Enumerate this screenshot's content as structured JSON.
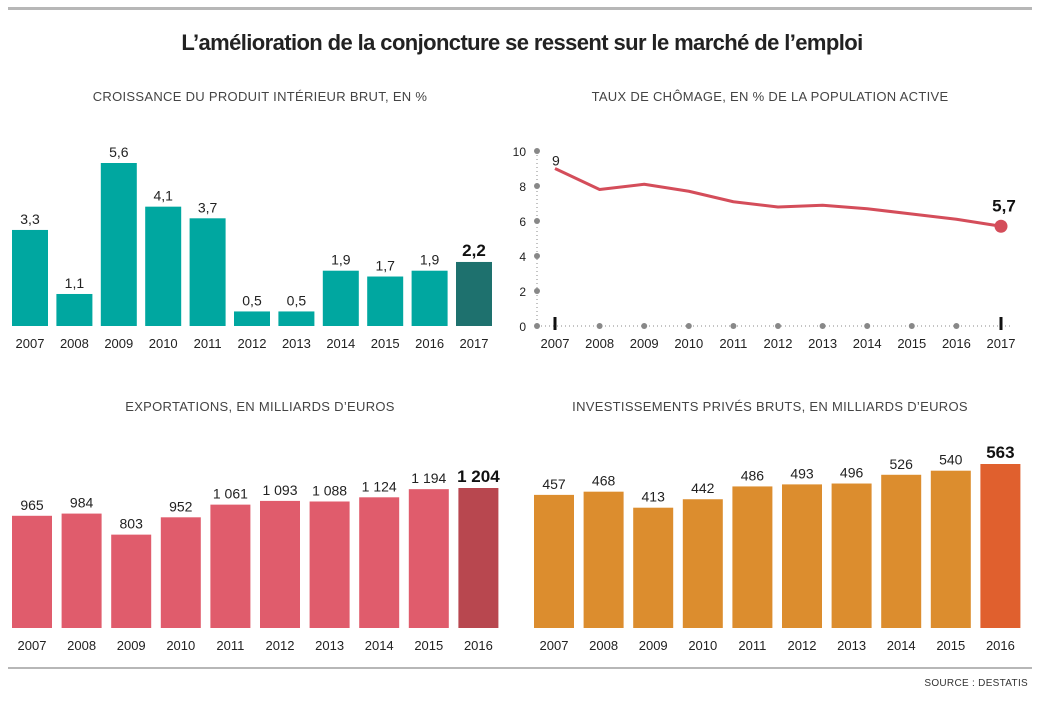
{
  "title": "L’amélioration de la conjoncture se ressent sur le marché de l’emploi",
  "source": "SOURCE : DESTATIS",
  "colors": {
    "gdp": "#00a7a0",
    "gdp_highlight": "#1e716e",
    "unemployment_line": "#d44d5a",
    "exports": "#e05c6c",
    "exports_highlight": "#b8474f",
    "investment": "#dc8d2e",
    "investment_highlight": "#e0602e",
    "axis": "#888888"
  },
  "chart_data": [
    {
      "id": "gdp",
      "type": "bar",
      "title": "CROISSANCE DU PRODUIT INTÉRIEUR BRUT, EN %",
      "categories": [
        "2007",
        "2008",
        "2009",
        "2010",
        "2011",
        "2012",
        "2013",
        "2014",
        "2015",
        "2016",
        "2017"
      ],
      "values": [
        3.3,
        1.1,
        5.6,
        4.1,
        3.7,
        0.5,
        0.5,
        1.9,
        1.7,
        1.9,
        2.2
      ],
      "labels": [
        "3,3",
        "1,1",
        "5,6",
        "4,1",
        "3,7",
        "0,5",
        "0,5",
        "1,9",
        "1,7",
        "1,9",
        "2,2"
      ],
      "highlight": "2017",
      "ylim": [
        0,
        5.6
      ]
    },
    {
      "id": "unemployment",
      "type": "line",
      "title": "TAUX DE CHÔMAGE, EN % DE LA POPULATION ACTIVE",
      "x": [
        "2007",
        "2008",
        "2009",
        "2010",
        "2011",
        "2012",
        "2013",
        "2014",
        "2015",
        "2016",
        "2017"
      ],
      "values": [
        9.0,
        7.8,
        8.1,
        7.7,
        7.1,
        6.8,
        6.9,
        6.7,
        6.4,
        6.1,
        5.7
      ],
      "start_label": "9",
      "end_label": "5,7",
      "yticks": [
        "0",
        "2",
        "4",
        "6",
        "8",
        "10"
      ],
      "ylim": [
        0,
        10
      ]
    },
    {
      "id": "exports",
      "type": "bar",
      "title": "EXPORTATIONS, EN MILLIARDS D’EUROS",
      "categories": [
        "2007",
        "2008",
        "2009",
        "2010",
        "2011",
        "2012",
        "2013",
        "2014",
        "2015",
        "2016"
      ],
      "values": [
        965,
        984,
        803,
        952,
        1061,
        1093,
        1088,
        1124,
        1194,
        1204
      ],
      "labels": [
        "965",
        "984",
        "803",
        "952",
        "1 061",
        "1 093",
        "1 088",
        "1 124",
        "1 194",
        "1 204"
      ],
      "highlight": "2016",
      "ylim": [
        0,
        1204
      ]
    },
    {
      "id": "investment",
      "type": "bar",
      "title": "INVESTISSEMENTS PRIVÉS BRUTS, EN MILLIARDS D’EUROS",
      "categories": [
        "2007",
        "2008",
        "2009",
        "2010",
        "2011",
        "2012",
        "2013",
        "2014",
        "2015",
        "2016"
      ],
      "values": [
        457,
        468,
        413,
        442,
        486,
        493,
        496,
        526,
        540,
        563
      ],
      "labels": [
        "457",
        "468",
        "413",
        "442",
        "486",
        "493",
        "496",
        "526",
        "540",
        "563"
      ],
      "highlight": "2016",
      "ylim": [
        0,
        563
      ]
    }
  ]
}
